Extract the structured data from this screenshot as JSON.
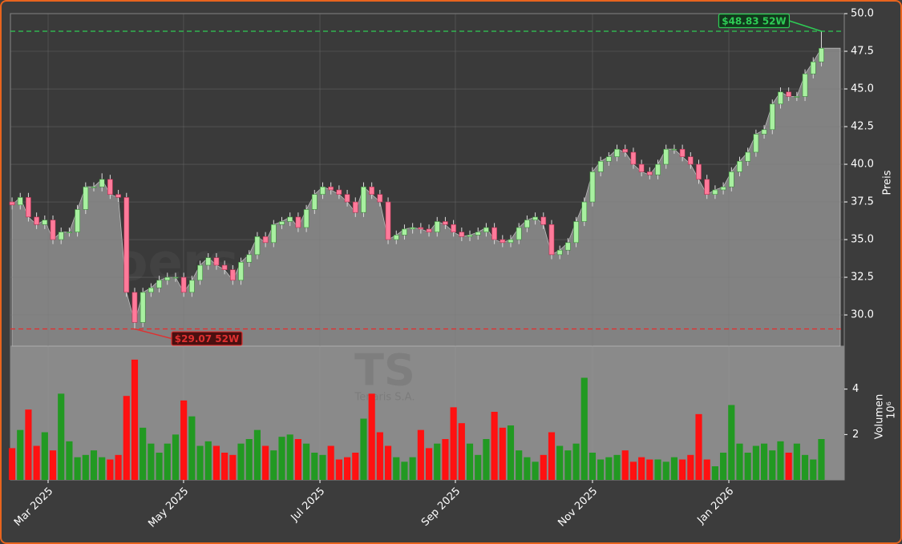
{
  "chart_data": {
    "type": "candlestick",
    "watermark": "boersensignale.trade",
    "ticker": "TS",
    "company": "Tenaris S.A.",
    "y_label": "Preis",
    "volume_label": "Volumen",
    "volume_scale": "10⁶",
    "up_color": "#a8f0a0",
    "down_color": "#ff7a9a",
    "volume_up_color": "#229922",
    "volume_down_color": "#ff1111",
    "area_color": "#828282",
    "grid": true,
    "xlim": [
      -0.2,
      101.8
    ],
    "xticks": [
      {
        "value": 4.41,
        "label": "Mar 2025"
      },
      {
        "value": 20.98,
        "label": "May 2025"
      },
      {
        "value": 37.66,
        "label": "Jul 2025"
      },
      {
        "value": 54.23,
        "label": "Sep 2025"
      },
      {
        "value": 71.0,
        "label": "Nov 2025"
      },
      {
        "value": 87.68,
        "label": "Jan 2026"
      }
    ],
    "ylim": [
      27.93,
      50
    ],
    "yticks": [
      {
        "value": 30,
        "label": "30.0"
      },
      {
        "value": 32.5,
        "label": "32.5"
      },
      {
        "value": 35,
        "label": "35.0"
      },
      {
        "value": 37.5,
        "label": "37.5"
      },
      {
        "value": 40,
        "label": "40.0"
      },
      {
        "value": 42.5,
        "label": "42.5"
      },
      {
        "value": 45,
        "label": "45.0"
      },
      {
        "value": 47.5,
        "label": "47.5"
      },
      {
        "value": 50,
        "label": "50.0"
      }
    ],
    "volume_ylim": [
      0,
      5.86
    ],
    "volume_yticks": [
      2,
      4
    ],
    "annotations": [
      {
        "text": "$48.83 52W",
        "value": 48.83,
        "color": "#2ecc55"
      },
      {
        "text": "$29.07 52W",
        "value": 29.07,
        "color": "#e03030"
      }
    ],
    "open": [
      37.5,
      37.3,
      37.8,
      36.5,
      36.0,
      36.3,
      35.0,
      35.5,
      35.5,
      37.0,
      38.5,
      38.5,
      39.0,
      38.0,
      37.8,
      31.5,
      29.5,
      31.5,
      31.8,
      32.3,
      32.5,
      32.5,
      31.5,
      32.3,
      33.3,
      33.8,
      33.3,
      33.0,
      32.3,
      33.5,
      34.0,
      35.2,
      34.8,
      36.0,
      36.2,
      36.5,
      35.8,
      37.0,
      38.0,
      38.5,
      38.3,
      38.0,
      37.5,
      36.8,
      38.5,
      38.0,
      37.5,
      35.0,
      35.3,
      35.7,
      35.8,
      35.7,
      35.5,
      36.2,
      36.0,
      35.5,
      35.2,
      35.3,
      35.5,
      35.8,
      35.0,
      34.8,
      35.0,
      35.8,
      36.3,
      36.5,
      36.0,
      34.0,
      34.3,
      34.8,
      36.2,
      37.5,
      39.5,
      40.2,
      40.5,
      41.0,
      40.8,
      40.0,
      39.5,
      39.3,
      40.0,
      41.0,
      41.0,
      40.5,
      40.0,
      39.0,
      38.0,
      38.3,
      38.5,
      39.5,
      40.2,
      40.8,
      42.0,
      42.3,
      44.0,
      44.8,
      44.5,
      44.5,
      46.0,
      46.8
    ],
    "high": [
      37.8,
      38.1,
      38.1,
      36.8,
      36.6,
      36.6,
      35.8,
      35.8,
      37.3,
      38.8,
      38.8,
      39.4,
      39.3,
      38.3,
      38.1,
      31.8,
      31.8,
      32.1,
      32.6,
      32.8,
      32.8,
      32.8,
      32.6,
      33.6,
      34.1,
      34.1,
      33.6,
      33.3,
      33.8,
      34.3,
      35.5,
      35.5,
      36.3,
      36.5,
      36.8,
      36.8,
      37.3,
      38.3,
      38.8,
      38.8,
      38.6,
      38.3,
      37.8,
      38.8,
      38.8,
      38.3,
      37.8,
      35.6,
      36.0,
      36.1,
      36.1,
      36.0,
      36.5,
      36.5,
      36.3,
      35.8,
      35.6,
      35.8,
      36.1,
      36.1,
      35.3,
      35.3,
      36.1,
      36.6,
      36.8,
      36.8,
      36.3,
      34.6,
      35.1,
      36.5,
      37.8,
      39.8,
      40.5,
      40.8,
      41.3,
      41.3,
      41.1,
      40.3,
      39.8,
      40.3,
      41.3,
      41.3,
      41.3,
      40.8,
      40.3,
      39.3,
      38.6,
      38.8,
      39.8,
      40.5,
      41.1,
      42.3,
      42.6,
      44.3,
      45.1,
      45.1,
      44.8,
      46.3,
      47.1,
      48.83
    ],
    "low": [
      37.0,
      37.0,
      36.2,
      35.7,
      35.7,
      34.7,
      34.7,
      35.2,
      35.2,
      36.7,
      38.2,
      38.2,
      37.7,
      37.5,
      31.2,
      29.07,
      29.2,
      31.2,
      31.5,
      32.0,
      32.2,
      31.2,
      31.2,
      32.0,
      33.0,
      33.0,
      32.7,
      32.0,
      32.0,
      33.2,
      33.7,
      34.5,
      34.5,
      35.7,
      35.9,
      35.5,
      35.5,
      36.7,
      37.7,
      38.0,
      37.7,
      37.2,
      36.5,
      36.5,
      37.7,
      37.2,
      34.7,
      34.7,
      35.0,
      35.4,
      35.4,
      35.2,
      35.2,
      35.7,
      35.2,
      34.9,
      34.9,
      35.0,
      35.2,
      34.7,
      34.5,
      34.5,
      34.7,
      35.5,
      36.0,
      35.7,
      33.7,
      33.7,
      34.0,
      34.5,
      35.9,
      37.2,
      39.2,
      39.9,
      40.2,
      40.5,
      39.7,
      39.2,
      39.0,
      39.0,
      39.7,
      40.7,
      40.2,
      39.7,
      38.7,
      37.7,
      37.7,
      38.0,
      38.2,
      39.2,
      39.9,
      40.5,
      41.7,
      42.0,
      43.7,
      44.2,
      44.2,
      44.2,
      45.7,
      46.5
    ],
    "close": [
      37.3,
      37.8,
      36.5,
      36.0,
      36.3,
      35.0,
      35.5,
      35.5,
      37.0,
      38.5,
      38.5,
      39.0,
      38.0,
      37.8,
      31.5,
      29.5,
      31.5,
      31.8,
      32.3,
      32.5,
      32.5,
      31.5,
      32.3,
      33.3,
      33.8,
      33.3,
      33.0,
      32.3,
      33.5,
      34.0,
      35.2,
      34.8,
      36.0,
      36.2,
      36.5,
      35.8,
      37.0,
      38.0,
      38.5,
      38.3,
      38.0,
      37.5,
      36.8,
      38.5,
      38.0,
      37.5,
      35.0,
      35.3,
      35.7,
      35.8,
      35.7,
      35.5,
      36.2,
      36.0,
      35.5,
      35.2,
      35.3,
      35.5,
      35.8,
      35.0,
      34.8,
      35.0,
      35.8,
      36.3,
      36.5,
      36.0,
      34.0,
      34.3,
      34.8,
      36.2,
      37.5,
      39.5,
      40.2,
      40.5,
      41.0,
      40.8,
      40.0,
      39.5,
      39.3,
      40.0,
      41.0,
      41.0,
      40.5,
      40.0,
      39.0,
      38.0,
      38.3,
      38.5,
      39.5,
      40.2,
      40.8,
      42.0,
      42.3,
      44.0,
      44.8,
      44.5,
      44.5,
      46.0,
      46.8,
      47.7
    ],
    "volume": [
      1.4,
      2.2,
      3.1,
      1.5,
      2.1,
      1.3,
      3.8,
      1.7,
      1.0,
      1.1,
      1.3,
      1.0,
      0.9,
      1.1,
      3.7,
      5.3,
      2.3,
      1.6,
      1.2,
      1.6,
      2.0,
      3.5,
      2.8,
      1.5,
      1.7,
      1.5,
      1.2,
      1.1,
      1.6,
      1.8,
      2.2,
      1.5,
      1.3,
      1.9,
      2.0,
      1.8,
      1.6,
      1.2,
      1.1,
      1.5,
      0.9,
      1.0,
      1.2,
      2.7,
      3.8,
      2.1,
      1.5,
      1.0,
      0.8,
      1.0,
      2.2,
      1.4,
      1.6,
      1.8,
      3.2,
      2.5,
      1.6,
      1.1,
      1.8,
      3.0,
      2.3,
      2.4,
      1.3,
      1.0,
      0.8,
      1.1,
      2.1,
      1.5,
      1.3,
      1.6,
      4.5,
      1.2,
      0.9,
      1.0,
      1.1,
      1.3,
      0.8,
      1.0,
      0.9,
      0.9,
      0.8,
      1.0,
      0.9,
      1.1,
      2.9,
      0.9,
      0.6,
      1.2,
      3.3,
      1.6,
      1.2,
      1.5,
      1.6,
      1.3,
      1.7,
      1.2,
      1.6,
      1.1,
      0.9,
      1.8
    ]
  }
}
